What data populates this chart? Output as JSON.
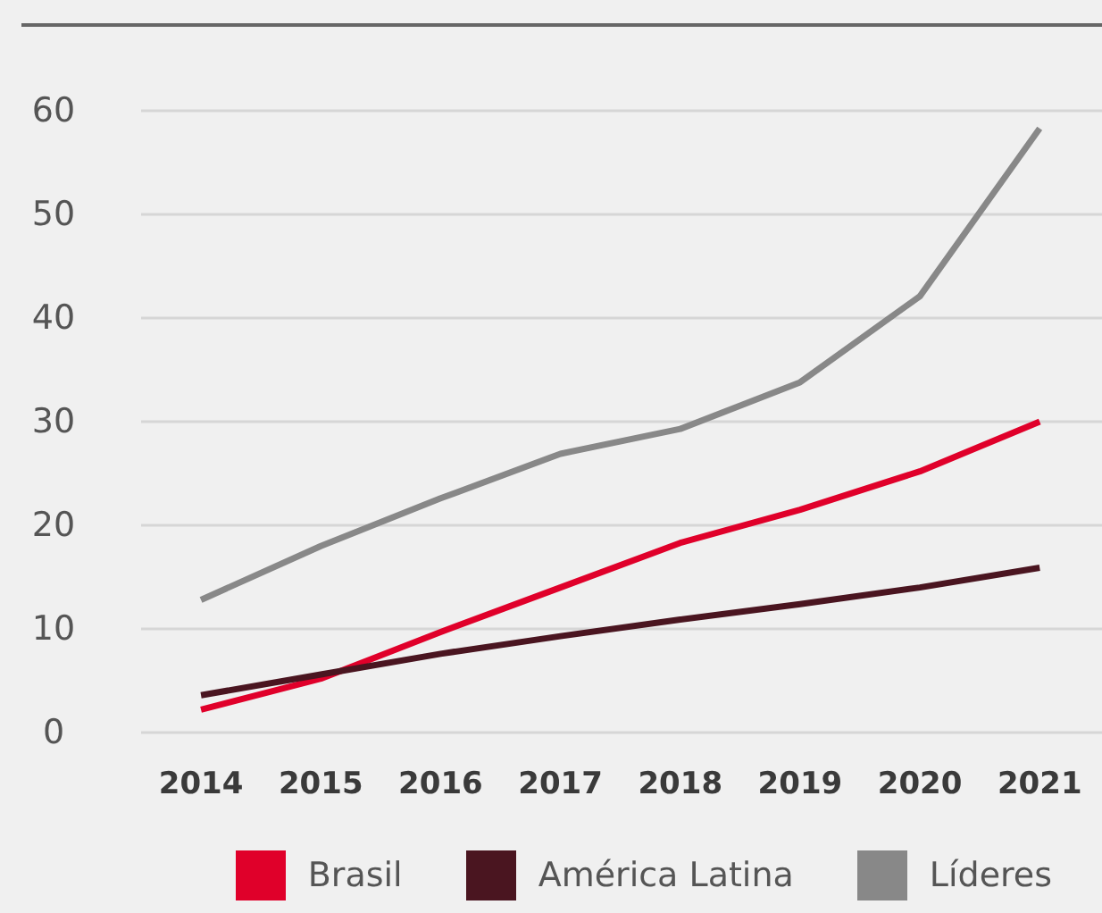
{
  "chart_data": {
    "type": "line",
    "categories": [
      "2014",
      "2015",
      "2016",
      "2017",
      "2018",
      "2019",
      "2020",
      "2021"
    ],
    "series": [
      {
        "name": "Brasil",
        "color": "#e0002a",
        "values": [
          2.2,
          5.2,
          9.7,
          14,
          18.3,
          21.5,
          25.2,
          30
        ]
      },
      {
        "name": "América Latina",
        "color": "#4a1520",
        "values": [
          3.6,
          5.6,
          7.6,
          9.3,
          10.9,
          12.4,
          14,
          15.9
        ]
      },
      {
        "name": "Líderes",
        "color": "#888888",
        "values": [
          12.8,
          18,
          22.6,
          26.9,
          29.3,
          33.8,
          42.1,
          58.3
        ]
      }
    ],
    "ylim": [
      0,
      60
    ],
    "yticks": [
      0,
      10,
      20,
      30,
      40,
      50,
      60
    ],
    "grid": "y",
    "legend": "bottom",
    "marker": "none",
    "line_style": "solid"
  }
}
